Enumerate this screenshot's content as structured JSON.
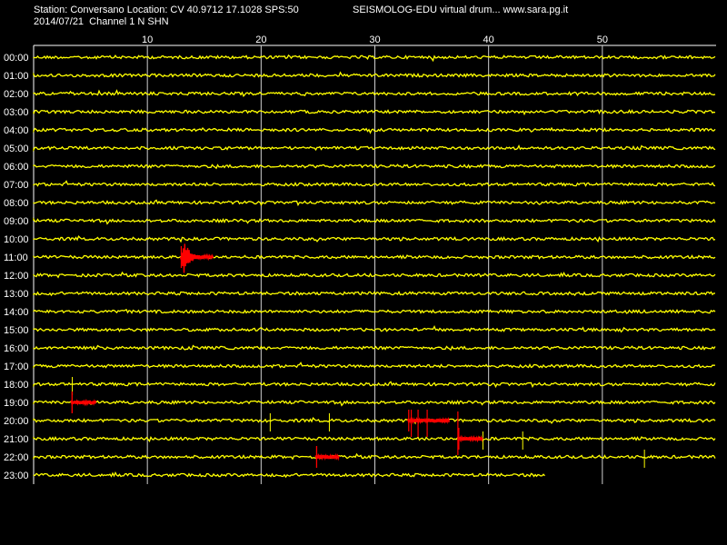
{
  "header": {
    "station_line": "Station: Conversano Location: CV 40.9712 17.1028 SPS:50",
    "date_line": "2014/07/21  Channel 1 N SHN",
    "product_line": "SEISMOLOG-EDU virtual drum... www.sara.pg.it"
  },
  "colors": {
    "background": "#000000",
    "trace": "#ffff00",
    "event": "#ff0000",
    "grid": "#ffffff",
    "text": "#ffffff"
  },
  "chart_data": {
    "type": "line",
    "title": "",
    "xlabel": "",
    "ylabel": "",
    "x_ticks": [
      10,
      20,
      30,
      40,
      50
    ],
    "xlim": [
      0,
      60
    ],
    "grid": true,
    "rows": [
      "00:00",
      "01:00",
      "02:00",
      "03:00",
      "04:00",
      "05:00",
      "06:00",
      "07:00",
      "08:00",
      "09:00",
      "10:00",
      "11:00",
      "12:00",
      "13:00",
      "14:00",
      "15:00",
      "16:00",
      "17:00",
      "18:00",
      "19:00",
      "20:00",
      "21:00",
      "22:00",
      "23:00"
    ],
    "last_row_end_minute": 45,
    "events": [
      {
        "row": "11:00",
        "start": 12.9,
        "end": 15.8,
        "color": "event"
      },
      {
        "row": "19:00",
        "start": 3.3,
        "end": 5.5,
        "color": "event"
      },
      {
        "row": "20:00",
        "start": 32.9,
        "end": 36.6,
        "color": "event"
      },
      {
        "row": "21:00",
        "start": 37.3,
        "end": 39.5,
        "color": "event"
      },
      {
        "row": "22:00",
        "start": 24.8,
        "end": 26.9,
        "color": "event"
      }
    ],
    "spikes": [
      {
        "row": "18:00",
        "minute": 3.4
      },
      {
        "row": "20:00",
        "minute": 20.8
      },
      {
        "row": "20:00",
        "minute": 26.0
      },
      {
        "row": "21:00",
        "minute": 39.5
      },
      {
        "row": "21:00",
        "minute": 43.0
      },
      {
        "row": "22:00",
        "minute": 53.7
      }
    ]
  }
}
